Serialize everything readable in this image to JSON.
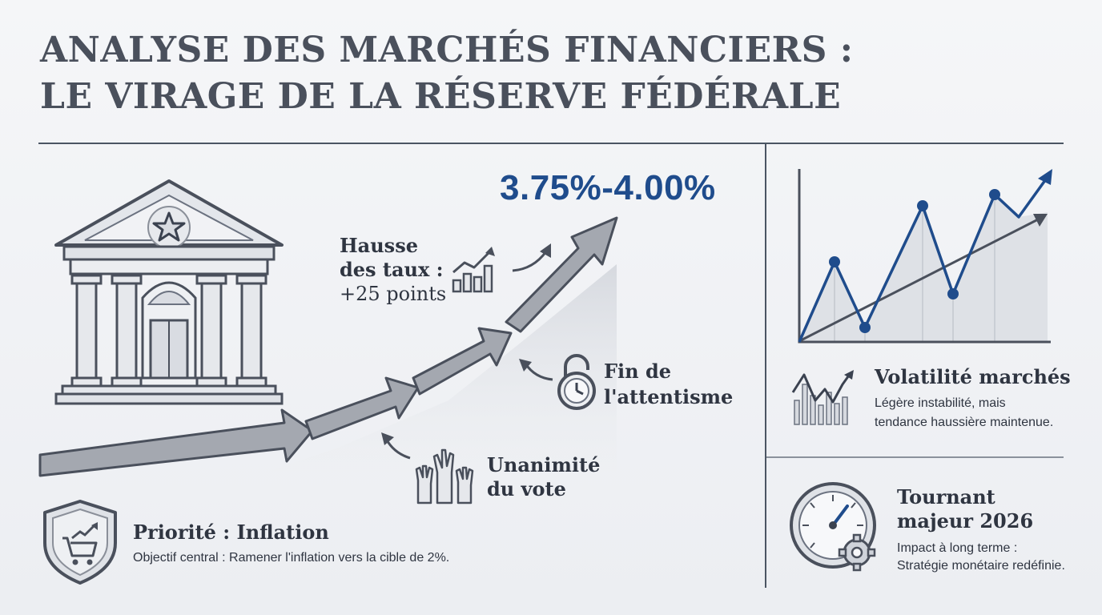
{
  "title": {
    "line1": "ANALYSE DES MARCHÉS FINANCIERS :",
    "line2": "LE VIRAGE DE LA RÉSERVE FÉDÉRALE"
  },
  "rate_range": "3.75%-4.00%",
  "hike": {
    "line1": "Hausse",
    "line2": "des taux :",
    "line3": "+25 points"
  },
  "end_wait": {
    "line1": "Fin de",
    "line2": "l'attentisme"
  },
  "unanimity": {
    "line1": "Unanimité",
    "line2": "du vote"
  },
  "priority": {
    "title": "Priorité : Inflation",
    "text": "Objectif central : Ramener l'inflation vers la cible de 2%."
  },
  "volatility": {
    "title": "Volatilité marchés",
    "line1": "Légère instabilité, mais",
    "line2": "tendance haussière maintenue."
  },
  "turning": {
    "title1": "Tournant",
    "title2": "majeur 2026",
    "line1": "Impact à long terme :",
    "line2": "Stratégie monétaire redéfinie."
  },
  "colors": {
    "accent_blue": "#1f4c8c",
    "dark_gray": "#4a505c",
    "arrow_gray": "#8a8f99"
  },
  "icons": [
    "bank-building-icon",
    "growth-bars-icon",
    "padlock-clock-icon",
    "raised-hands-icon",
    "shield-cart-icon",
    "market-chart-icon",
    "gauge-gear-icon"
  ]
}
